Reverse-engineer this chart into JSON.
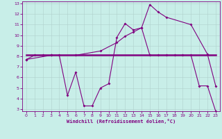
{
  "xlabel": "Windchill (Refroidissement éolien,°C)",
  "bg_color": "#c8eee8",
  "line_color": "#800080",
  "grid_color": "#b0d0cc",
  "xlim": [
    -0.5,
    23.5
  ],
  "ylim": [
    2.8,
    13.2
  ],
  "yticks": [
    3,
    4,
    5,
    6,
    7,
    8,
    9,
    10,
    11,
    12,
    13
  ],
  "xticks": [
    0,
    1,
    2,
    3,
    4,
    5,
    6,
    7,
    8,
    9,
    10,
    11,
    12,
    13,
    14,
    15,
    16,
    17,
    18,
    19,
    20,
    21,
    22,
    23
  ],
  "line1_x": [
    0,
    1,
    2,
    3,
    4,
    5,
    6,
    7,
    8,
    9,
    10,
    11,
    12,
    13,
    14,
    15,
    16,
    17,
    18,
    19,
    20,
    21,
    22,
    23
  ],
  "line1_y": [
    7.7,
    8.1,
    8.1,
    8.1,
    8.1,
    4.3,
    6.5,
    3.3,
    3.3,
    5.0,
    5.4,
    9.8,
    11.1,
    10.5,
    10.7,
    8.1,
    8.1,
    8.1,
    8.1,
    8.1,
    8.1,
    5.2,
    5.2,
    2.8
  ],
  "line2_x": [
    0,
    23
  ],
  "line2_y": [
    8.1,
    8.1
  ],
  "line3_x": [
    0,
    3,
    6,
    9,
    11,
    12,
    13,
    14,
    15,
    16,
    17,
    20,
    22,
    23
  ],
  "line3_y": [
    7.7,
    8.1,
    8.1,
    8.5,
    9.3,
    9.9,
    10.3,
    10.7,
    12.9,
    12.2,
    11.7,
    11.0,
    8.2,
    5.2
  ]
}
